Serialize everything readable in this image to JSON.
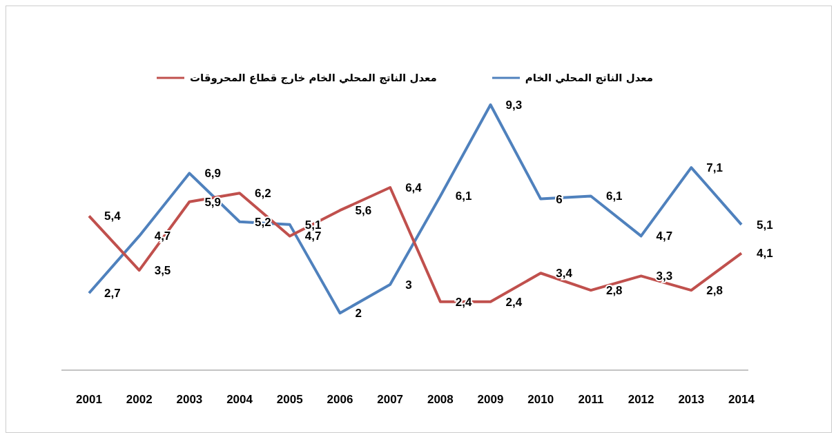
{
  "chart_data": {
    "type": "line",
    "categories": [
      "2001",
      "2002",
      "2003",
      "2004",
      "2005",
      "2006",
      "2007",
      "2008",
      "2009",
      "2010",
      "2011",
      "2012",
      "2013",
      "2014"
    ],
    "series": [
      {
        "name": "معدل الناتج المحلي الخام",
        "color": "#4f81bd",
        "values": [
          2.7,
          4.7,
          6.9,
          5.2,
          5.1,
          2,
          3,
          6.1,
          9.3,
          6,
          6.1,
          4.7,
          7.1,
          5.1
        ],
        "value_labels": [
          "2,7",
          "4,7",
          "6,9",
          "5,2",
          "5,1",
          "2",
          "3",
          "6,1",
          "9,3",
          "6",
          "6,1",
          "4,7",
          "7,1",
          "5,1"
        ]
      },
      {
        "name": "معدل الناتج المحلي الخام خارج  قطاع المحروقات",
        "color": "#c0504d",
        "values": [
          5.4,
          3.5,
          5.9,
          6.2,
          4.7,
          5.6,
          6.4,
          2.4,
          2.4,
          3.4,
          2.8,
          3.3,
          2.8,
          4.1
        ],
        "value_labels": [
          "5,4",
          "3,5",
          "5,9",
          "6,2",
          "4,7",
          "5,6",
          "6,4",
          "2,4",
          "2,4",
          "3,4",
          "2,8",
          "3,3",
          "2,8",
          "4,1"
        ]
      }
    ],
    "legend": "top",
    "grid": false,
    "marker": "none",
    "line_style": "solid"
  }
}
